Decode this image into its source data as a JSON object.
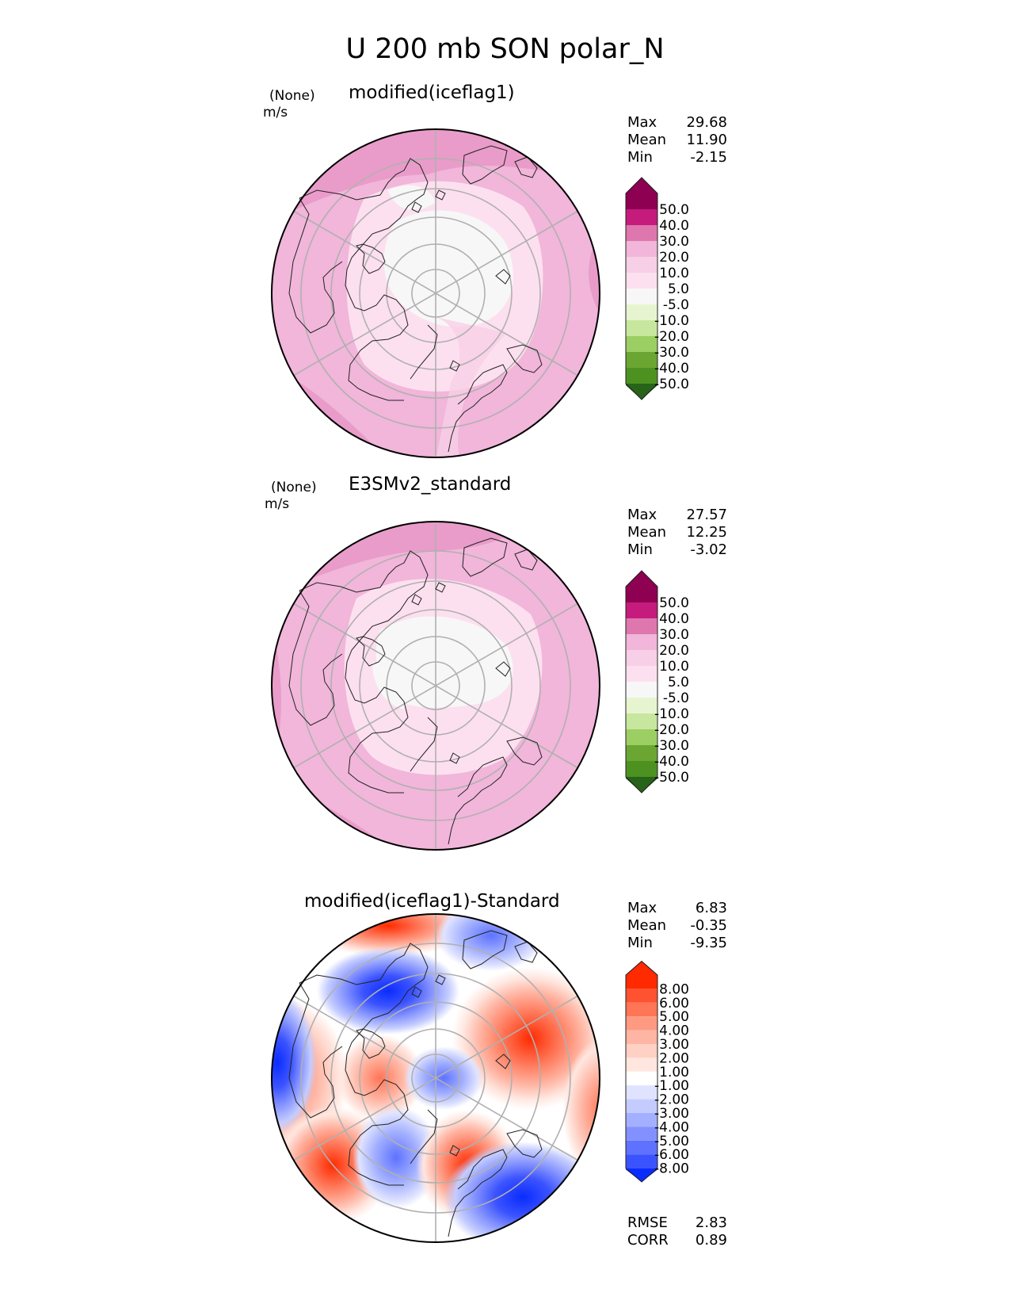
{
  "figure": {
    "title": "U 200 mb SON polar_N"
  },
  "panels": [
    {
      "title": "modified(iceflag1)",
      "source": "(None)",
      "units": "m/s",
      "stats": [
        {
          "label": "Max",
          "value": "29.68"
        },
        {
          "label": "Mean",
          "value": "11.90"
        },
        {
          "label": "Min",
          "value": "-2.15"
        }
      ]
    },
    {
      "title": "E3SMv2_standard",
      "source": "(None)",
      "units": "m/s",
      "stats": [
        {
          "label": "Max",
          "value": "27.57"
        },
        {
          "label": "Mean",
          "value": "12.25"
        },
        {
          "label": "Min",
          "value": "-3.02"
        }
      ]
    },
    {
      "title": "modified(iceflag1)-Standard",
      "stats": [
        {
          "label": "Max",
          "value": "6.83"
        },
        {
          "label": "Mean",
          "value": "-0.35"
        },
        {
          "label": "Min",
          "value": "-9.35"
        }
      ],
      "metrics": [
        {
          "label": "RMSE",
          "value": "2.83"
        },
        {
          "label": "CORR",
          "value": "0.89"
        }
      ]
    }
  ],
  "colorbars": {
    "field": {
      "ticks": [
        "50.0",
        "40.0",
        "30.0",
        "20.0",
        "10.0",
        "5.0",
        "-5.0",
        "-10.0",
        "-20.0",
        "-30.0",
        "-40.0",
        "-50.0"
      ],
      "colors": [
        "#8e0152",
        "#c51b7d",
        "#de77ae",
        "#f1b6da",
        "#f7cfe6",
        "#fde0ef",
        "#f7f7f7",
        "#e6f5d0",
        "#c8e79e",
        "#9ccf63",
        "#6aa631",
        "#4d9221",
        "#276419"
      ]
    },
    "diff": {
      "ticks": [
        "8.00",
        "6.00",
        "5.00",
        "4.00",
        "3.00",
        "2.00",
        "1.00",
        "-1.00",
        "-2.00",
        "-3.00",
        "-4.00",
        "-5.00",
        "-6.00",
        "-8.00"
      ],
      "colors": [
        "#ff2a00",
        "#ff5230",
        "#ff7556",
        "#ff9a82",
        "#ffb5a3",
        "#ffd0c4",
        "#ffe6df",
        "#ffffff",
        "#dfe3ff",
        "#c4ccff",
        "#a3b0ff",
        "#8291ff",
        "#5e72ff",
        "#3b53ff",
        "#0a2cff"
      ]
    }
  },
  "chart_data": [
    {
      "type": "heatmap",
      "projection": "north-polar-stereographic",
      "title": "modified(iceflag1)",
      "units": "m/s",
      "levels": [
        -50,
        -40,
        -30,
        -20,
        -10,
        -5,
        5,
        10,
        20,
        30,
        40,
        50
      ],
      "max": 29.68,
      "mean": 11.9,
      "min": -2.15
    },
    {
      "type": "heatmap",
      "projection": "north-polar-stereographic",
      "title": "E3SMv2_standard",
      "units": "m/s",
      "levels": [
        -50,
        -40,
        -30,
        -20,
        -10,
        -5,
        5,
        10,
        20,
        30,
        40,
        50
      ],
      "max": 27.57,
      "mean": 12.25,
      "min": -3.02
    },
    {
      "type": "heatmap",
      "projection": "north-polar-stereographic",
      "title": "modified(iceflag1)-Standard",
      "levels": [
        -8,
        -6,
        -5,
        -4,
        -3,
        -2,
        -1,
        1,
        2,
        3,
        4,
        5,
        6,
        8
      ],
      "max": 6.83,
      "mean": -0.35,
      "min": -9.35,
      "rmse": 2.83,
      "corr": 0.89
    }
  ]
}
